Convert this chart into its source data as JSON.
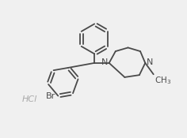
{
  "bg_color": "#f0f0f0",
  "line_color": "#4a4a4a",
  "text_color": "#4a4a4a",
  "lw": 1.3,
  "figsize": [
    2.36,
    1.75
  ],
  "dpi": 100,
  "xlim": [
    0,
    10
  ],
  "ylim": [
    0,
    7.5
  ],
  "hcl_color": "#aaaaaa",
  "br_color": "#4a4a4a"
}
